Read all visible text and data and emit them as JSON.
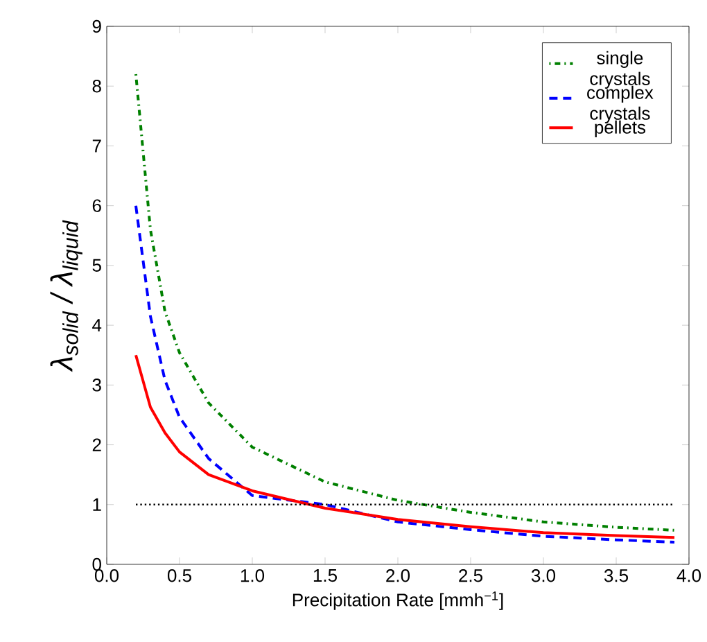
{
  "chart_data": {
    "type": "line",
    "xlabel": "Precipitation Rate [mmh$^{−1}$]",
    "ylabel": "λ$_{solid}$ / λ$_{liquid}$",
    "x": [
      0.2,
      0.3,
      0.4,
      0.5,
      0.7,
      1.0,
      1.5,
      2.0,
      2.5,
      3.0,
      3.5,
      3.9
    ],
    "series": [
      {
        "name": "single crystals",
        "color": "#008000",
        "line_style": "dashdot",
        "values": [
          8.2,
          5.6,
          4.23,
          3.54,
          2.7,
          1.96,
          1.38,
          1.07,
          0.87,
          0.71,
          0.62,
          0.57
        ]
      },
      {
        "name": "complex crystals",
        "color": "#0000ff",
        "line_style": "dashed",
        "values": [
          6.0,
          4.15,
          3.08,
          2.46,
          1.77,
          1.15,
          1.0,
          0.71,
          0.58,
          0.47,
          0.41,
          0.37
        ]
      },
      {
        "name": "pellets",
        "color": "#ff0000",
        "line_style": "solid",
        "values": [
          3.5,
          2.63,
          2.2,
          1.88,
          1.5,
          1.23,
          0.94,
          0.75,
          0.63,
          0.53,
          0.48,
          0.45
        ]
      }
    ],
    "xlim": [
      0,
      4
    ],
    "ylim": [
      0,
      9
    ],
    "xticks": [
      {
        "value": 0,
        "label": "0.0"
      },
      {
        "value": 0.5,
        "label": "0.5"
      },
      {
        "value": 1,
        "label": "1.0"
      },
      {
        "value": 1.5,
        "label": "1.5"
      },
      {
        "value": 2,
        "label": "2.0"
      },
      {
        "value": 2.5,
        "label": "2.5"
      },
      {
        "value": 3,
        "label": "3.0"
      },
      {
        "value": 3.5,
        "label": "3.5"
      },
      {
        "value": 4,
        "label": "4.0"
      }
    ],
    "yticks": [
      0,
      1,
      2,
      3,
      4,
      5,
      6,
      7,
      8,
      9
    ],
    "ref_lines": [
      {
        "axis": "y",
        "value": 1,
        "color": "#000000",
        "line_style": "dotted"
      }
    ],
    "legend": "top right",
    "grid": false
  }
}
